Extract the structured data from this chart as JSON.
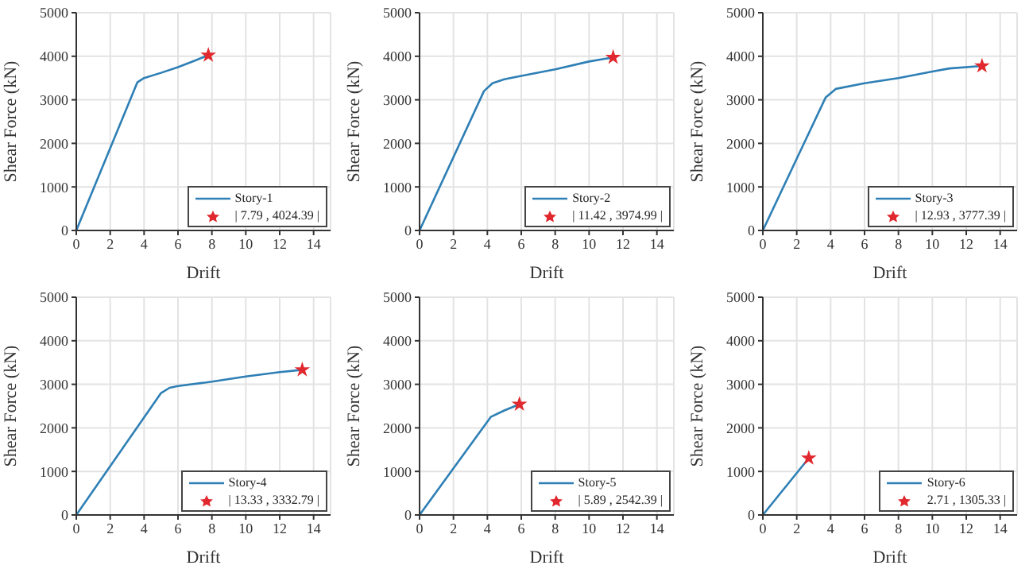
{
  "chart_data": [
    {
      "type": "line",
      "xlabel": "Drift",
      "ylabel": "Shear Force (kN)",
      "xlim": [
        0,
        15
      ],
      "xticks": [
        0,
        2,
        4,
        6,
        8,
        10,
        12,
        14
      ],
      "ylim": [
        0,
        5000
      ],
      "yticks": [
        0,
        1000,
        2000,
        3000,
        4000,
        5000
      ],
      "grid": true,
      "legend": "bottom right",
      "series": [
        {
          "name": "Story-1",
          "type": "line",
          "color": "#2e7fb5",
          "marker": "none",
          "x": [
            0,
            3.6,
            4,
            5,
            6,
            7,
            7.79
          ],
          "values": [
            0,
            3400,
            3500,
            3620,
            3750,
            3900,
            4024.39
          ]
        },
        {
          "name": "| 7.79 , 4024.39 |",
          "type": "scatter",
          "color": "#e0282e",
          "marker": "star",
          "x": [
            7.79
          ],
          "values": [
            4024.39
          ]
        }
      ]
    },
    {
      "type": "line",
      "xlabel": "Drift",
      "ylabel": "Shear Force (kN)",
      "xlim": [
        0,
        15
      ],
      "xticks": [
        0,
        2,
        4,
        6,
        8,
        10,
        12,
        14
      ],
      "ylim": [
        0,
        5000
      ],
      "yticks": [
        0,
        1000,
        2000,
        3000,
        4000,
        5000
      ],
      "grid": true,
      "legend": "bottom right",
      "series": [
        {
          "name": "Story-2",
          "type": "line",
          "color": "#2e7fb5",
          "marker": "none",
          "x": [
            0,
            3.8,
            4.3,
            5,
            6,
            8,
            10,
            11.42
          ],
          "values": [
            0,
            3200,
            3380,
            3470,
            3550,
            3700,
            3880,
            3974.99
          ]
        },
        {
          "name": "| 11.42 , 3974.99 |",
          "type": "scatter",
          "color": "#e0282e",
          "marker": "star",
          "x": [
            11.42
          ],
          "values": [
            3974.99
          ]
        }
      ]
    },
    {
      "type": "line",
      "xlabel": "Drift",
      "ylabel": "Shear Force (kN)",
      "xlim": [
        0,
        15
      ],
      "xticks": [
        0,
        2,
        4,
        6,
        8,
        10,
        12,
        14
      ],
      "ylim": [
        0,
        5000
      ],
      "yticks": [
        0,
        1000,
        2000,
        3000,
        4000,
        5000
      ],
      "grid": true,
      "legend": "bottom right",
      "series": [
        {
          "name": "Story-3",
          "type": "line",
          "color": "#2e7fb5",
          "marker": "none",
          "x": [
            0,
            3.7,
            4.3,
            6,
            8,
            10,
            11,
            12.93
          ],
          "values": [
            0,
            3050,
            3250,
            3380,
            3500,
            3650,
            3720,
            3777.39
          ]
        },
        {
          "name": "| 12.93 , 3777.39 |",
          "type": "scatter",
          "color": "#e0282e",
          "marker": "star",
          "x": [
            12.93
          ],
          "values": [
            3777.39
          ]
        }
      ]
    },
    {
      "type": "line",
      "xlabel": "Drift",
      "ylabel": "Shear Force (kN)",
      "xlim": [
        0,
        15
      ],
      "xticks": [
        0,
        2,
        4,
        6,
        8,
        10,
        12,
        14
      ],
      "ylim": [
        0,
        5000
      ],
      "yticks": [
        0,
        1000,
        2000,
        3000,
        4000,
        5000
      ],
      "grid": true,
      "legend": "bottom right",
      "series": [
        {
          "name": "Story-4",
          "type": "line",
          "color": "#2e7fb5",
          "marker": "none",
          "x": [
            0,
            5,
            5.5,
            6,
            8,
            10,
            12,
            13.33
          ],
          "values": [
            0,
            2800,
            2920,
            2960,
            3060,
            3180,
            3280,
            3332.79
          ]
        },
        {
          "name": "| 13.33 , 3332.79 |",
          "type": "scatter",
          "color": "#e0282e",
          "marker": "star",
          "x": [
            13.33
          ],
          "values": [
            3332.79
          ]
        }
      ]
    },
    {
      "type": "line",
      "xlabel": "Drift",
      "ylabel": "Shear Force (kN)",
      "xlim": [
        0,
        15
      ],
      "xticks": [
        0,
        2,
        4,
        6,
        8,
        10,
        12,
        14
      ],
      "ylim": [
        0,
        5000
      ],
      "yticks": [
        0,
        1000,
        2000,
        3000,
        4000,
        5000
      ],
      "grid": true,
      "legend": "bottom right",
      "series": [
        {
          "name": "Story-5",
          "type": "line",
          "color": "#2e7fb5",
          "marker": "none",
          "x": [
            0,
            4.2,
            5,
            5.89
          ],
          "values": [
            0,
            2250,
            2400,
            2542.39
          ]
        },
        {
          "name": "| 5.89 , 2542.39 |",
          "type": "scatter",
          "color": "#e0282e",
          "marker": "star",
          "x": [
            5.89
          ],
          "values": [
            2542.39
          ]
        }
      ]
    },
    {
      "type": "line",
      "xlabel": "Drift",
      "ylabel": "Shear Force (kN)",
      "xlim": [
        0,
        15
      ],
      "xticks": [
        0,
        2,
        4,
        6,
        8,
        10,
        12,
        14
      ],
      "ylim": [
        0,
        5000
      ],
      "yticks": [
        0,
        1000,
        2000,
        3000,
        4000,
        5000
      ],
      "grid": true,
      "legend": "bottom right",
      "series": [
        {
          "name": "Story-6",
          "type": "line",
          "color": "#2e7fb5",
          "marker": "none",
          "x": [
            0,
            2.71
          ],
          "values": [
            0,
            1305.33
          ]
        },
        {
          "name": "2.71 , 1305.33 |",
          "type": "scatter",
          "color": "#e0282e",
          "marker": "star",
          "x": [
            2.71
          ],
          "values": [
            1305.33
          ]
        }
      ]
    }
  ]
}
